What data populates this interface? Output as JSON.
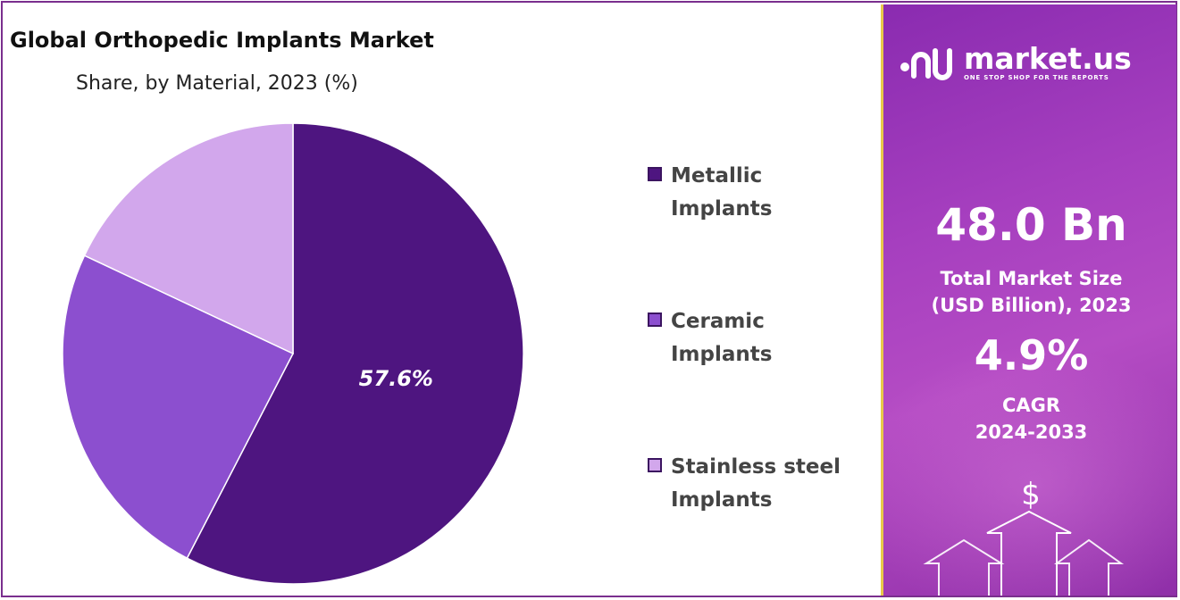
{
  "chart_data": {
    "type": "pie",
    "title": "Global Orthopedic Implants Market",
    "subtitle": "Share, by Material, 2023 (%)",
    "categories": [
      "Metallic Implants",
      "Ceramic Implants",
      "Stainless steel Implants"
    ],
    "values": [
      57.6,
      24.4,
      18.0
    ],
    "data_labels": [
      "57.6%",
      "",
      ""
    ],
    "colors": [
      "#4e1580",
      "#8c4fcf",
      "#d2a7ec"
    ],
    "legend_position": "right"
  },
  "legend": [
    {
      "label": "Metallic Implants"
    },
    {
      "label": "Ceramic Implants"
    },
    {
      "label": "Stainless steel Implants"
    }
  ],
  "brand": {
    "name": "market.us",
    "tagline": "ONE STOP SHOP FOR THE REPORTS"
  },
  "stats": {
    "market_size": "48.0 Bn",
    "market_size_label_1": "Total Market Size",
    "market_size_label_2": "(USD Billion), 2023",
    "cagr": "4.9%",
    "cagr_label_1": "CAGR",
    "cagr_label_2": "2024-2033"
  },
  "icons": {
    "currency": "$"
  }
}
